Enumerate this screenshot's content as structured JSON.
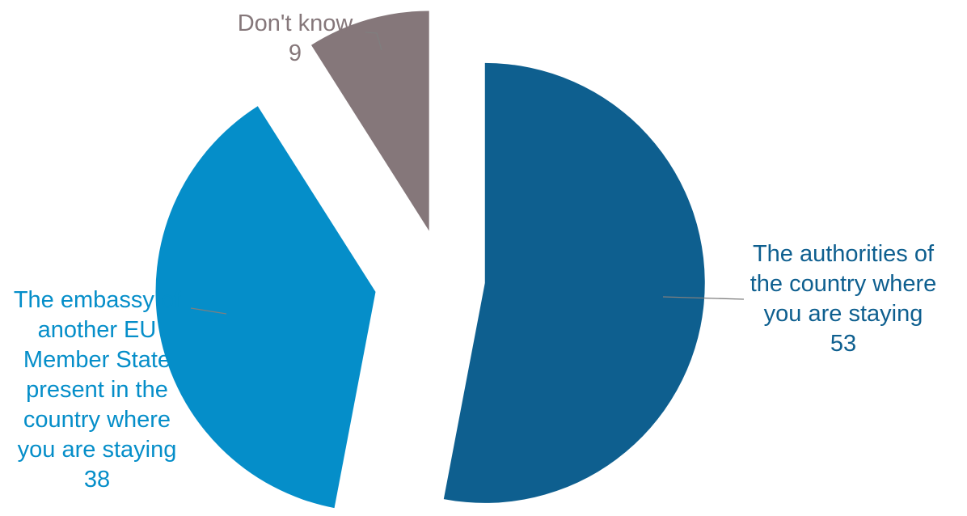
{
  "chart_data": {
    "type": "pie",
    "title": "",
    "exploded": true,
    "slices": [
      {
        "label_lines": [
          "The authorities of",
          "the country where",
          "you are staying"
        ],
        "value": 53,
        "color": "#0e5f8f"
      },
      {
        "label_lines": [
          "The embassy of",
          "another EU",
          "Member State",
          "present in the",
          "country where",
          "you are staying"
        ],
        "value": 38,
        "color": "#058ec9"
      },
      {
        "label_lines": [
          "Don't know"
        ],
        "value": 9,
        "color": "#85777a"
      }
    ]
  }
}
